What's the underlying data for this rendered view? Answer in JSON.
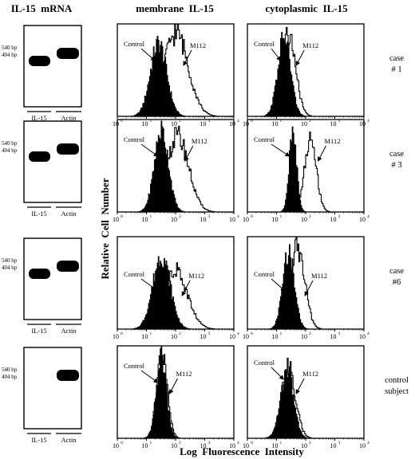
{
  "headers": {
    "mrna": "IL-15  mRNA",
    "membrane": "membrane  IL-15",
    "cytoplasmic": "cytoplasmic  IL-15"
  },
  "gel": {
    "bp_top": "540 bp",
    "bp_bottom": "404 bp",
    "lane_il15": "IL-15",
    "lane_actin": "Actin"
  },
  "axis": {
    "ylabel": "Relative  Cell  Number",
    "xlabel": "Log  Fluorescence  Intensity",
    "ticks": [
      "10",
      "10",
      "10",
      "10",
      "10"
    ],
    "exponents": [
      "0",
      "1",
      "2",
      "3",
      "4"
    ]
  },
  "labels": {
    "control": "Control",
    "m112": "M112"
  },
  "rows": [
    {
      "case_line1": "case",
      "case_line2": "# 1",
      "il15_band": true
    },
    {
      "case_line1": "case",
      "case_line2": "# 3",
      "il15_band": true
    },
    {
      "case_line1": "case",
      "case_line2": "#6",
      "il15_band": true
    },
    {
      "case_line1": "control",
      "case_line2": "subject",
      "il15_band": false
    }
  ],
  "chart_data": [
    {
      "type": "area",
      "row": "case # 1",
      "panel": "membrane IL-15",
      "xscale": "log",
      "xlim": [
        1,
        10000
      ],
      "series": [
        {
          "name": "Control",
          "peak_log": 1.4,
          "width": 0.28,
          "height": 0.85
        },
        {
          "name": "M112",
          "peak_log": 2.0,
          "width": 0.42,
          "height": 0.97
        }
      ]
    },
    {
      "type": "area",
      "row": "case # 1",
      "panel": "cytoplasmic IL-15",
      "xscale": "log",
      "xlim": [
        1,
        10000
      ],
      "series": [
        {
          "name": "Control",
          "peak_log": 1.25,
          "width": 0.22,
          "height": 0.92
        },
        {
          "name": "M112",
          "peak_log": 1.4,
          "width": 0.24,
          "height": 0.95
        }
      ]
    },
    {
      "type": "area",
      "row": "case # 3",
      "panel": "membrane IL-15",
      "xscale": "log",
      "xlim": [
        1,
        10000
      ],
      "series": [
        {
          "name": "Control",
          "peak_log": 1.5,
          "width": 0.24,
          "height": 0.95
        },
        {
          "name": "M112",
          "peak_log": 2.05,
          "width": 0.38,
          "height": 0.88
        }
      ]
    },
    {
      "type": "area",
      "row": "case # 3",
      "panel": "cytoplasmic IL-15",
      "xscale": "log",
      "xlim": [
        1,
        10000
      ],
      "series": [
        {
          "name": "Control",
          "peak_log": 1.55,
          "width": 0.13,
          "height": 0.93
        },
        {
          "name": "M112",
          "peak_log": 2.15,
          "width": 0.2,
          "height": 0.85
        }
      ]
    },
    {
      "type": "area",
      "row": "case #6",
      "panel": "membrane IL-15",
      "xscale": "log",
      "xlim": [
        1,
        10000
      ],
      "series": [
        {
          "name": "Control",
          "peak_log": 1.5,
          "width": 0.3,
          "height": 0.85
        },
        {
          "name": "M112",
          "peak_log": 1.95,
          "width": 0.42,
          "height": 0.7
        }
      ]
    },
    {
      "type": "area",
      "row": "case #6",
      "panel": "cytoplasmic IL-15",
      "xscale": "log",
      "xlim": [
        1,
        10000
      ],
      "series": [
        {
          "name": "Control",
          "peak_log": 1.4,
          "width": 0.2,
          "height": 0.9
        },
        {
          "name": "M112",
          "peak_log": 1.7,
          "width": 0.25,
          "height": 0.95
        }
      ]
    },
    {
      "type": "area",
      "row": "control subject",
      "panel": "membrane IL-15",
      "xscale": "log",
      "xlim": [
        1,
        10000
      ],
      "series": [
        {
          "name": "Control",
          "peak_log": 1.5,
          "width": 0.17,
          "height": 0.95
        },
        {
          "name": "M112",
          "peak_log": 1.52,
          "width": 0.18,
          "height": 0.97
        }
      ]
    },
    {
      "type": "area",
      "row": "control subject",
      "panel": "cytoplasmic IL-15",
      "xscale": "log",
      "xlim": [
        1,
        10000
      ],
      "series": [
        {
          "name": "Control",
          "peak_log": 1.35,
          "width": 0.22,
          "height": 0.8
        },
        {
          "name": "M112",
          "peak_log": 1.4,
          "width": 0.24,
          "height": 0.82
        }
      ]
    }
  ]
}
